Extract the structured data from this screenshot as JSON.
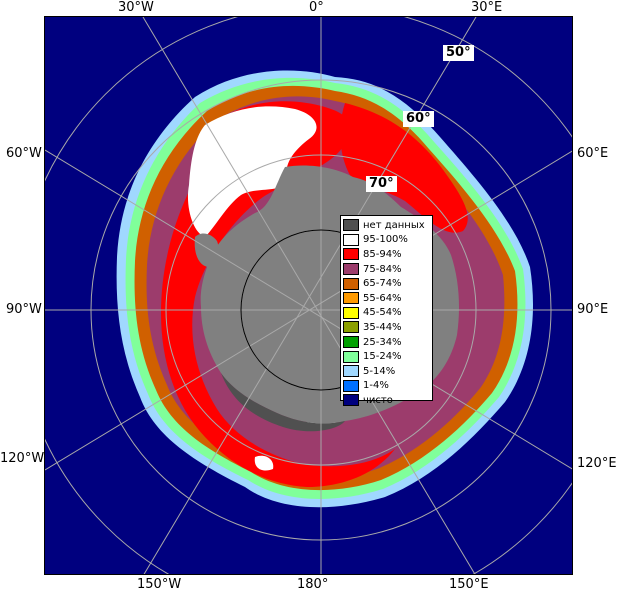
{
  "longitude_labels": {
    "w30": "30°W",
    "zero": "0°",
    "e30": "30°E",
    "w60": "60°W",
    "e60": "60°E",
    "w90": "90°W",
    "e90": "90°E",
    "w120": "120°W",
    "e120": "120°E",
    "w150": "150°W",
    "d180": "180°",
    "e150": "150°E"
  },
  "latitude_labels": {
    "lat50": "50°",
    "lat60": "60°",
    "lat70": "70°"
  },
  "colors": {
    "ocean": "#00007f",
    "land": "#808080",
    "grid": "#a9a9a9"
  },
  "legend": [
    {
      "label": "нет данных",
      "color": "#505050"
    },
    {
      "label": "95-100%",
      "color": "#ffffff"
    },
    {
      "label": "85-94%",
      "color": "#ff0000"
    },
    {
      "label": "75-84%",
      "color": "#9c3c6c"
    },
    {
      "label": "65-74%",
      "color": "#d06000"
    },
    {
      "label": "55-64%",
      "color": "#ff9a00"
    },
    {
      "label": "45-54%",
      "color": "#ffff00"
    },
    {
      "label": "35-44%",
      "color": "#8ca000"
    },
    {
      "label": "25-34%",
      "color": "#00a000"
    },
    {
      "label": "15-24%",
      "color": "#80ff9a"
    },
    {
      "label": "5-14%",
      "color": "#a0d8ff"
    },
    {
      "label": "1-4%",
      "color": "#0070ff"
    },
    {
      "label": "чисто",
      "color": "#00007f"
    }
  ]
}
